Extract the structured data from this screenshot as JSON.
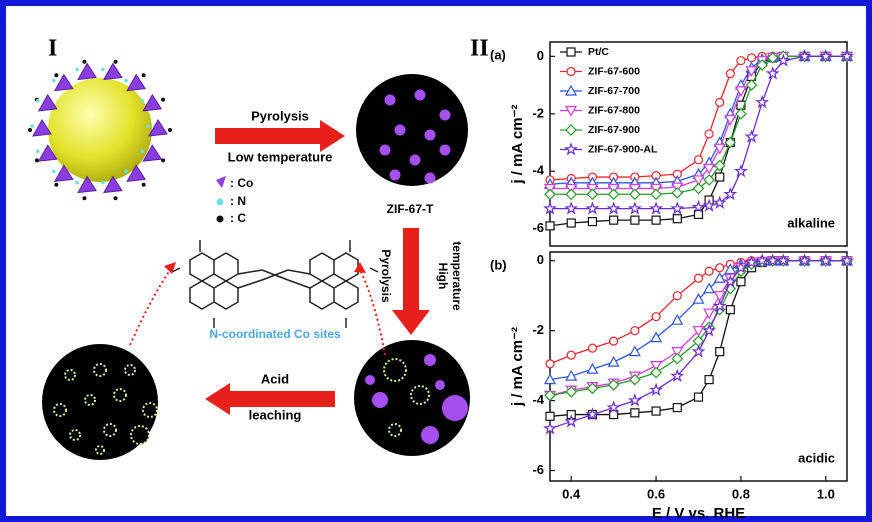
{
  "diagram": {
    "panel_1": "I",
    "panel_2": "II",
    "step_1_top": "Pyrolysis",
    "step_1_bottom": "Low temperature",
    "legend_co": ": Co",
    "legend_n": ": N",
    "legend_c": ": C",
    "product_1": "ZIF-67-T",
    "step_2_left": "Pyrolysis",
    "step_2_right_1": "High",
    "step_2_right_2": "temperature",
    "sites": "N-coordinated Co sites",
    "step_3_top": "Acid",
    "step_3_bottom": "leaching"
  },
  "chart_data": [
    {
      "type": "line",
      "panel": "(a)",
      "annotation": "alkaline",
      "ylabel": "j / mA cm⁻²",
      "x": [
        0.35,
        0.4,
        0.45,
        0.5,
        0.55,
        0.6,
        0.65,
        0.7,
        0.725,
        0.75,
        0.775,
        0.8,
        0.825,
        0.85,
        0.875,
        0.9,
        0.95,
        1.0,
        1.05
      ],
      "xlim": [
        0.35,
        1.05
      ],
      "ylim": [
        -6.6,
        0.5
      ],
      "yticks": [
        0,
        -2,
        -4,
        -6
      ],
      "legend": "upper left",
      "series": [
        {
          "name": "Pt/C",
          "color": "#111111",
          "marker": "square",
          "values": [
            -5.9,
            -5.8,
            -5.75,
            -5.7,
            -5.7,
            -5.7,
            -5.65,
            -5.5,
            -5.0,
            -4.2,
            -3.0,
            -1.7,
            -0.7,
            -0.2,
            -0.05,
            0,
            0,
            0,
            0
          ]
        },
        {
          "name": "ZIF-67-600",
          "color": "#e8262a",
          "marker": "circle",
          "values": [
            -4.3,
            -4.25,
            -4.2,
            -4.2,
            -4.2,
            -4.15,
            -4.1,
            -3.6,
            -2.7,
            -1.6,
            -0.6,
            -0.15,
            -0.05,
            0,
            0,
            0,
            0,
            0,
            0
          ]
        },
        {
          "name": "ZIF-67-700",
          "color": "#2f55e0",
          "marker": "triangle",
          "values": [
            -4.45,
            -4.4,
            -4.4,
            -4.4,
            -4.4,
            -4.4,
            -4.35,
            -4.1,
            -3.7,
            -3.0,
            -2.0,
            -1.0,
            -0.4,
            -0.1,
            -0.03,
            0,
            0,
            0,
            0
          ]
        },
        {
          "name": "ZIF-67-800",
          "color": "#d23cd8",
          "marker": "triangle-down",
          "values": [
            -4.6,
            -4.6,
            -4.6,
            -4.6,
            -4.6,
            -4.6,
            -4.55,
            -4.3,
            -3.9,
            -3.2,
            -2.2,
            -1.2,
            -0.5,
            -0.15,
            -0.03,
            0,
            0,
            0,
            0
          ]
        },
        {
          "name": "ZIF-67-900",
          "color": "#2a9a2a",
          "marker": "diamond",
          "values": [
            -4.8,
            -4.8,
            -4.8,
            -4.8,
            -4.8,
            -4.8,
            -4.75,
            -4.6,
            -4.3,
            -3.8,
            -3.0,
            -2.0,
            -1.0,
            -0.3,
            -0.05,
            0,
            0,
            0,
            0
          ]
        },
        {
          "name": "ZIF-67-900-AL",
          "color": "#6a2bd0",
          "marker": "star",
          "values": [
            -5.3,
            -5.3,
            -5.3,
            -5.3,
            -5.3,
            -5.3,
            -5.3,
            -5.25,
            -5.2,
            -5.1,
            -4.8,
            -4.0,
            -2.8,
            -1.6,
            -0.6,
            -0.15,
            0,
            0,
            0
          ]
        }
      ]
    },
    {
      "type": "line",
      "panel": "(b)",
      "annotation": "acidic",
      "ylabel": "j / mA cm⁻²",
      "xlabel": "E / V vs. RHE",
      "x": [
        0.35,
        0.4,
        0.45,
        0.5,
        0.55,
        0.6,
        0.65,
        0.7,
        0.725,
        0.75,
        0.775,
        0.8,
        0.825,
        0.85,
        0.875,
        0.9,
        0.95,
        1.0,
        1.05
      ],
      "xlim": [
        0.35,
        1.05
      ],
      "ylim": [
        -6.3,
        0.25
      ],
      "yticks": [
        0,
        -2,
        -4,
        -6
      ],
      "xticks": [
        0.4,
        0.6,
        0.8,
        {
          "value": 1,
          "label": "1.0"
        }
      ],
      "series": [
        {
          "color": "#111111",
          "marker": "square",
          "values": [
            -4.45,
            -4.4,
            -4.4,
            -4.4,
            -4.35,
            -4.3,
            -4.2,
            -3.9,
            -3.4,
            -2.6,
            -1.4,
            -0.6,
            -0.2,
            -0.05,
            0,
            0,
            0,
            0,
            0
          ]
        },
        {
          "color": "#e8262a",
          "marker": "circle",
          "values": [
            -2.95,
            -2.7,
            -2.5,
            -2.3,
            -2.0,
            -1.6,
            -1.0,
            -0.5,
            -0.3,
            -0.2,
            -0.1,
            -0.05,
            0,
            0,
            0,
            0,
            0,
            0,
            0
          ]
        },
        {
          "color": "#2f55e0",
          "marker": "triangle",
          "values": [
            -3.4,
            -3.3,
            -3.1,
            -2.9,
            -2.6,
            -2.2,
            -1.7,
            -1.1,
            -0.8,
            -0.5,
            -0.25,
            -0.1,
            -0.05,
            0,
            0,
            0,
            0,
            0,
            0
          ]
        },
        {
          "color": "#d23cd8",
          "marker": "triangle-down",
          "values": [
            -3.85,
            -3.7,
            -3.6,
            -3.5,
            -3.3,
            -3.0,
            -2.6,
            -2.0,
            -1.5,
            -1.0,
            -0.5,
            -0.2,
            -0.08,
            -0.02,
            0,
            0,
            0,
            0,
            0
          ]
        },
        {
          "color": "#2a9a2a",
          "marker": "diamond",
          "values": [
            -3.85,
            -3.75,
            -3.65,
            -3.55,
            -3.4,
            -3.2,
            -2.8,
            -2.3,
            -1.9,
            -1.4,
            -0.8,
            -0.3,
            -0.1,
            -0.03,
            0,
            0,
            0,
            0,
            0
          ]
        },
        {
          "color": "#6a2bd0",
          "marker": "star",
          "values": [
            -4.8,
            -4.6,
            -4.4,
            -4.2,
            -4.0,
            -3.7,
            -3.3,
            -2.6,
            -2.0,
            -1.3,
            -0.6,
            -0.2,
            -0.05,
            0,
            0,
            0,
            0,
            0,
            0
          ]
        }
      ]
    }
  ]
}
